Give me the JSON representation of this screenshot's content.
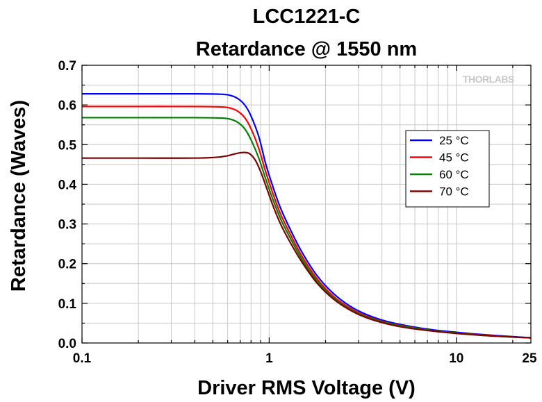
{
  "chart_data": {
    "type": "line",
    "title": "LCC1221-C",
    "subtitle": "Retardance @ 1550 nm",
    "xlabel": "Driver RMS Voltage (V)",
    "ylabel": "Retardance (Waves)",
    "x_scale": "log",
    "xlim": [
      0.1,
      25
    ],
    "ylim": [
      0,
      0.7
    ],
    "x_ticks": [
      0.1,
      1,
      10,
      25
    ],
    "x_tick_labels": [
      "0.1",
      "1",
      "10",
      "25"
    ],
    "y_ticks": [
      0,
      0.1,
      0.2,
      0.3,
      0.4,
      0.5,
      0.6,
      0.7
    ],
    "y_tick_labels": [
      "0.0",
      "0.1",
      "0.2",
      "0.3",
      "0.4",
      "0.5",
      "0.6",
      "0.7"
    ],
    "grid": true,
    "legend_position": "right",
    "watermark": "THORLABS",
    "series": [
      {
        "name": "25 °C",
        "color": "#0000ff",
        "x": [
          0.1,
          0.2,
          0.4,
          0.55,
          0.62,
          0.68,
          0.74,
          0.8,
          0.88,
          0.96,
          1.05,
          1.15,
          1.3,
          1.5,
          1.8,
          2.2,
          2.7,
          3.3,
          4.2,
          5.5,
          7.5,
          10,
          14,
          20,
          25
        ],
        "y": [
          0.628,
          0.628,
          0.628,
          0.627,
          0.624,
          0.616,
          0.6,
          0.572,
          0.52,
          0.45,
          0.392,
          0.34,
          0.285,
          0.228,
          0.17,
          0.125,
          0.093,
          0.072,
          0.055,
          0.043,
          0.033,
          0.027,
          0.021,
          0.016,
          0.013
        ]
      },
      {
        "name": "45 °C",
        "color": "#ff0000",
        "x": [
          0.1,
          0.2,
          0.4,
          0.55,
          0.62,
          0.68,
          0.74,
          0.8,
          0.88,
          0.96,
          1.05,
          1.15,
          1.3,
          1.5,
          1.8,
          2.2,
          2.7,
          3.3,
          4.2,
          5.5,
          7.5,
          10,
          14,
          20,
          25
        ],
        "y": [
          0.596,
          0.596,
          0.596,
          0.595,
          0.592,
          0.584,
          0.568,
          0.54,
          0.49,
          0.43,
          0.375,
          0.325,
          0.273,
          0.218,
          0.162,
          0.118,
          0.088,
          0.068,
          0.052,
          0.041,
          0.031,
          0.025,
          0.02,
          0.015,
          0.013
        ]
      },
      {
        "name": "60 °C",
        "color": "#008000",
        "x": [
          0.1,
          0.2,
          0.4,
          0.55,
          0.62,
          0.68,
          0.74,
          0.8,
          0.88,
          0.96,
          1.05,
          1.15,
          1.3,
          1.5,
          1.8,
          2.2,
          2.7,
          3.3,
          4.2,
          5.5,
          7.5,
          10,
          14,
          20,
          25
        ],
        "y": [
          0.568,
          0.568,
          0.568,
          0.567,
          0.564,
          0.556,
          0.54,
          0.512,
          0.466,
          0.412,
          0.36,
          0.313,
          0.263,
          0.21,
          0.156,
          0.114,
          0.085,
          0.066,
          0.051,
          0.04,
          0.031,
          0.025,
          0.019,
          0.015,
          0.013
        ]
      },
      {
        "name": "70 °C",
        "color": "#800000",
        "x": [
          0.1,
          0.2,
          0.4,
          0.52,
          0.6,
          0.66,
          0.72,
          0.78,
          0.84,
          0.9,
          0.97,
          1.05,
          1.15,
          1.3,
          1.5,
          1.8,
          2.2,
          2.7,
          3.3,
          4.2,
          5.5,
          7.5,
          10,
          14,
          20,
          25
        ],
        "y": [
          0.466,
          0.466,
          0.466,
          0.468,
          0.472,
          0.477,
          0.48,
          0.478,
          0.462,
          0.432,
          0.39,
          0.345,
          0.3,
          0.252,
          0.203,
          0.151,
          0.111,
          0.083,
          0.064,
          0.049,
          0.038,
          0.03,
          0.024,
          0.019,
          0.015,
          0.013
        ]
      }
    ]
  }
}
